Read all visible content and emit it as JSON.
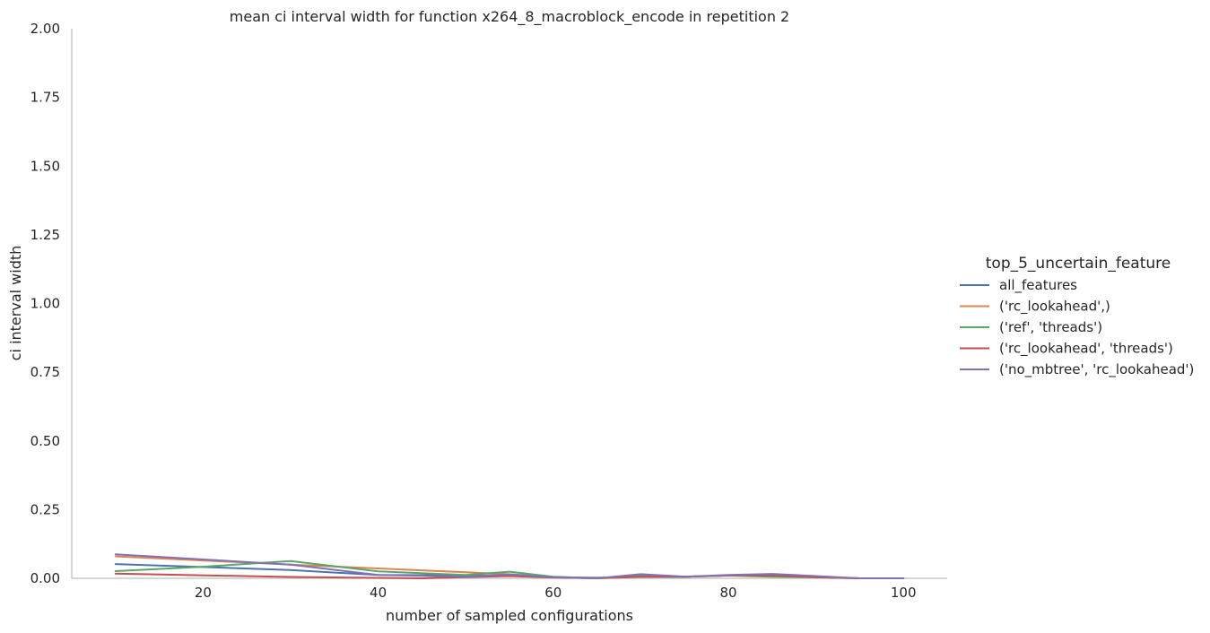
{
  "chart_data": {
    "type": "line",
    "title": "mean ci interval width for function x264_8_macroblock_encode in repetition 2",
    "xlabel": "number of sampled configurations",
    "ylabel": "ci interval width",
    "xlim": [
      5,
      105
    ],
    "ylim": [
      0,
      2
    ],
    "xticks": [
      20,
      40,
      60,
      80,
      100
    ],
    "yticks": [
      0.0,
      0.25,
      0.5,
      0.75,
      1.0,
      1.25,
      1.5,
      1.75,
      2.0
    ],
    "ytick_labels": [
      "0.00",
      "0.25",
      "0.50",
      "0.75",
      "1.00",
      "1.25",
      "1.50",
      "1.75",
      "2.00"
    ],
    "grid": false,
    "legend": {
      "title": "top_5_uncertain_feature",
      "placement": "right"
    },
    "series": [
      {
        "name": "all_features",
        "color": "#4c72b0",
        "x": [
          10,
          30,
          40,
          55,
          60,
          65,
          70,
          75,
          80,
          85,
          90,
          95,
          100
        ],
        "y": [
          0.052,
          0.03,
          0.012,
          0.01,
          0.004,
          0.002,
          0.006,
          0.006,
          0.01,
          0.008,
          0.004,
          0.0,
          0.0
        ]
      },
      {
        "name": "('rc_lookahead',)",
        "color": "#dd8452",
        "x": [
          10,
          30,
          55,
          60,
          65,
          70,
          75,
          80,
          85,
          90,
          95,
          100
        ],
        "y": [
          0.08,
          0.05,
          0.015,
          0.004,
          0.0,
          0.012,
          0.006,
          0.01,
          0.014,
          0.006,
          0.0,
          0.0
        ]
      },
      {
        "name": "('ref', 'threads')",
        "color": "#55a868",
        "x": [
          10,
          20,
          30,
          40,
          50,
          55,
          60,
          65,
          70,
          75,
          80,
          85,
          90,
          95,
          100
        ],
        "y": [
          0.026,
          0.042,
          0.063,
          0.025,
          0.012,
          0.024,
          0.006,
          0.0,
          0.012,
          0.006,
          0.01,
          0.006,
          0.004,
          0.0,
          0.0
        ]
      },
      {
        "name": "('rc_lookahead', 'threads')",
        "color": "#c44e52",
        "x": [
          10,
          30,
          45,
          55,
          60,
          65,
          70,
          75,
          80,
          85,
          90,
          95,
          100
        ],
        "y": [
          0.017,
          0.005,
          0.0,
          0.008,
          0.003,
          0.0,
          0.006,
          0.006,
          0.01,
          0.01,
          0.004,
          0.0,
          0.0
        ]
      },
      {
        "name": "('no_mbtree', 'rc_lookahead')",
        "color": "#8172b3",
        "x": [
          10,
          30,
          40,
          50,
          55,
          60,
          65,
          70,
          75,
          80,
          85,
          90,
          95,
          100
        ],
        "y": [
          0.087,
          0.05,
          0.012,
          0.006,
          0.014,
          0.004,
          0.0,
          0.015,
          0.006,
          0.012,
          0.016,
          0.008,
          0.0,
          0.0
        ]
      }
    ]
  }
}
